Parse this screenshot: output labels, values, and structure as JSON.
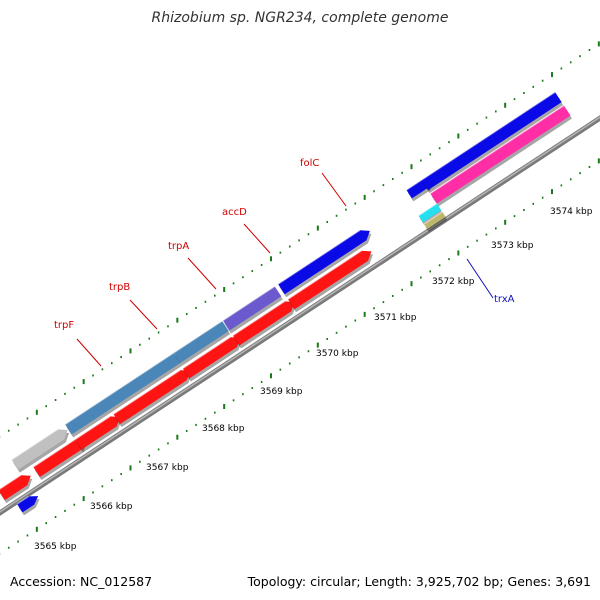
{
  "title": "Rhizobium sp. NGR234, complete genome",
  "footer": {
    "accession": "Accession: NC_012587",
    "summary": "Topology: circular; Length: 3,925,702 bp; Genes: 3,691"
  },
  "kbp_labels": [
    "3565 kbp",
    "3566 kbp",
    "3567 kbp",
    "3568 kbp",
    "3569 kbp",
    "3570 kbp",
    "3571 kbp",
    "3572 kbp",
    "3573 kbp",
    "3574 kbp"
  ],
  "gene_labels": [
    {
      "name": "trpF",
      "color": "#d00000"
    },
    {
      "name": "trpB",
      "color": "#d00000"
    },
    {
      "name": "trpA",
      "color": "#d00000"
    },
    {
      "name": "accD",
      "color": "#d00000"
    },
    {
      "name": "folC",
      "color": "#d00000"
    },
    {
      "name": "trxA",
      "color": "#1010c0"
    }
  ],
  "colors": {
    "backbone": "#8a8a8a",
    "tick_green": "#1a7a1a",
    "red_feature": "#ff1414",
    "blue_gene": "#0a0ae6",
    "steel_blue_gene": "#4a86b8",
    "purple_gene": "#6a5acd",
    "pink_feature": "#ff2da6",
    "gray_gene": "#c0c0c0",
    "cyan_gene": "#22e0f0",
    "khaki_gene": "#bdb76b"
  }
}
